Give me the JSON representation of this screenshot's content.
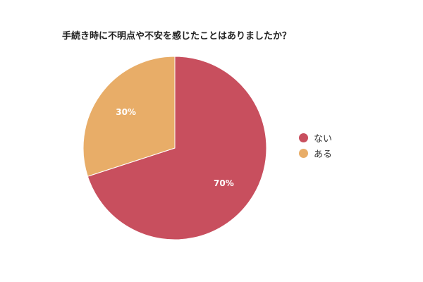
{
  "chart_data": {
    "type": "pie",
    "title": "手続き時に不明点や不安を感じたことはありましたか？",
    "slices": [
      {
        "name": "ない",
        "value": 70,
        "label": "70%",
        "color": "#c84f5e"
      },
      {
        "name": "ある",
        "value": 30,
        "label": "30%",
        "color": "#e8ad68"
      }
    ],
    "start_angle_deg": 0,
    "direction": "clockwise",
    "legend_position": "right",
    "data_labels": "inside"
  }
}
